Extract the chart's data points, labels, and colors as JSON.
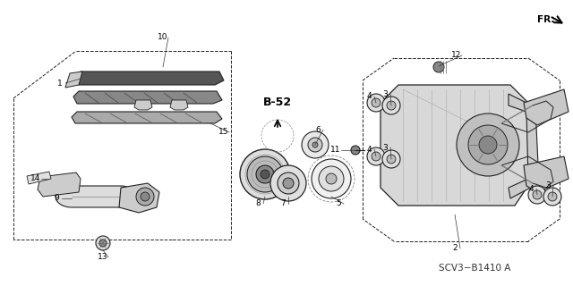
{
  "bg_color": "#ffffff",
  "lc": "#222222",
  "fig_width": 6.4,
  "fig_height": 3.2,
  "footer_text": "SCV3−B1410 A",
  "fr_text": "FR.",
  "b52_text": "B-52",
  "xlim": [
    0,
    640
  ],
  "ylim": [
    0,
    320
  ]
}
